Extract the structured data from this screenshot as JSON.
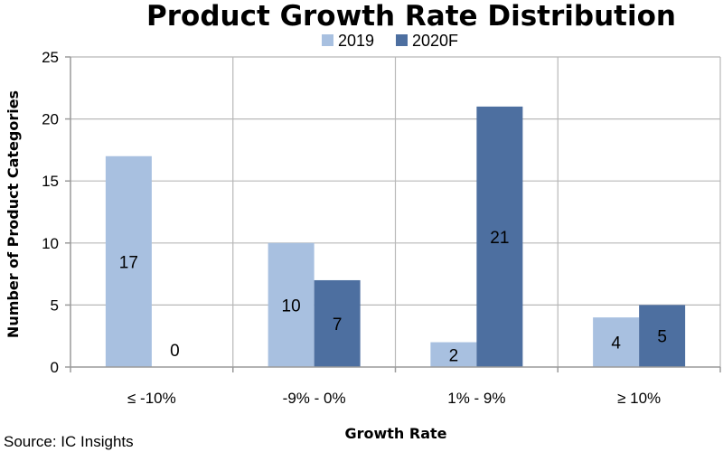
{
  "chart_data": {
    "type": "bar",
    "title": "Product Growth Rate Distribution",
    "xlabel": "Growth Rate",
    "ylabel": "Number of Product Categories",
    "categories": [
      "≤ -10%",
      "-9% - 0%",
      "1% - 9%",
      "≥ 10%"
    ],
    "series": [
      {
        "name": "2019",
        "values": [
          17,
          10,
          2,
          4
        ],
        "color": "#a8c0e0"
      },
      {
        "name": "2020F",
        "values": [
          0,
          7,
          21,
          5
        ],
        "color": "#4d6fa0"
      }
    ],
    "ylim": [
      0,
      25
    ],
    "yticks": [
      0,
      5,
      10,
      15,
      20,
      25
    ],
    "grid": true,
    "legend_position": "top-center"
  },
  "source": "Source:  IC Insights",
  "colors": {
    "grid": "#b8b8b8",
    "axis": "#9a9a9a"
  }
}
